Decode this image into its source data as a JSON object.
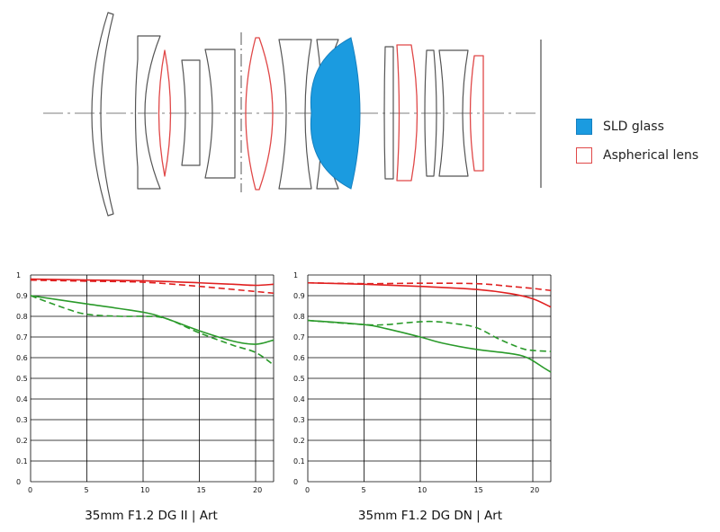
{
  "legend": {
    "items": [
      {
        "label": "SLD glass",
        "color": "#1b9be0",
        "kind": "filled"
      },
      {
        "label": "Aspherical lens",
        "color": "#e04848",
        "kind": "outline"
      }
    ]
  },
  "colors": {
    "sld": "#1b9be0",
    "aspherical": "#e04848",
    "lens": "#555555",
    "axis": "#888888",
    "sagittal_red": "#e02020",
    "green": "#2a9a2a",
    "grid": "#000000"
  },
  "chart_data": [
    {
      "type": "line",
      "title": "35mm F1.2 DG II | Art",
      "xlabel": "",
      "ylabel": "",
      "xlim": [
        0,
        21.6
      ],
      "ylim": [
        0,
        1
      ],
      "x_ticks": [
        "0",
        "5",
        "10",
        "15",
        "20"
      ],
      "y_ticks": [
        "1",
        "0.9",
        "0.8",
        "0.7",
        "0.6",
        "0.5",
        "0.4",
        "0.3",
        "0.2",
        "0.1",
        "0"
      ],
      "grid": true,
      "series": [
        {
          "color": "#e02020",
          "dash": false,
          "x": [
            0,
            5,
            10,
            15,
            18,
            20,
            21.6
          ],
          "y": [
            0.98,
            0.976,
            0.972,
            0.962,
            0.955,
            0.95,
            0.955
          ]
        },
        {
          "color": "#e02020",
          "dash": true,
          "x": [
            0,
            5,
            10,
            15,
            18,
            20,
            21.6
          ],
          "y": [
            0.975,
            0.97,
            0.965,
            0.945,
            0.93,
            0.92,
            0.912
          ]
        },
        {
          "color": "#2a9a2a",
          "dash": false,
          "x": [
            0,
            5,
            10,
            12,
            15,
            18,
            20,
            21.6
          ],
          "y": [
            0.9,
            0.86,
            0.82,
            0.79,
            0.73,
            0.68,
            0.665,
            0.685
          ]
        },
        {
          "color": "#2a9a2a",
          "dash": true,
          "x": [
            0,
            3,
            5,
            8,
            10,
            12,
            15,
            18,
            20,
            21.6
          ],
          "y": [
            0.9,
            0.84,
            0.81,
            0.8,
            0.8,
            0.79,
            0.72,
            0.66,
            0.625,
            0.565
          ]
        }
      ]
    },
    {
      "type": "line",
      "title": "35mm F1.2 DG DN | Art",
      "xlabel": "",
      "ylabel": "",
      "xlim": [
        0,
        21.6
      ],
      "ylim": [
        0,
        1
      ],
      "x_ticks": [
        "0",
        "5",
        "10",
        "15",
        "20"
      ],
      "y_ticks": [
        "1",
        "0.9",
        "0.8",
        "0.7",
        "0.6",
        "0.5",
        "0.4",
        "0.3",
        "0.2",
        "0.1",
        "0"
      ],
      "grid": true,
      "series": [
        {
          "color": "#e02020",
          "dash": false,
          "x": [
            0,
            5,
            10,
            15,
            18,
            20,
            21.6
          ],
          "y": [
            0.962,
            0.955,
            0.945,
            0.93,
            0.91,
            0.885,
            0.845
          ]
        },
        {
          "color": "#e02020",
          "dash": true,
          "x": [
            0,
            5,
            10,
            15,
            18,
            20,
            21.6
          ],
          "y": [
            0.962,
            0.958,
            0.96,
            0.958,
            0.945,
            0.935,
            0.925
          ]
        },
        {
          "color": "#2a9a2a",
          "dash": false,
          "x": [
            0,
            5,
            7,
            10,
            12,
            15,
            18,
            19.5,
            21,
            21.6
          ],
          "y": [
            0.78,
            0.76,
            0.74,
            0.7,
            0.67,
            0.64,
            0.62,
            0.6,
            0.55,
            0.53
          ]
        },
        {
          "color": "#2a9a2a",
          "dash": true,
          "x": [
            0,
            5,
            7,
            9,
            11,
            13,
            15,
            17,
            19,
            20,
            21.6
          ],
          "y": [
            0.78,
            0.76,
            0.76,
            0.77,
            0.775,
            0.765,
            0.745,
            0.69,
            0.645,
            0.635,
            0.63
          ]
        }
      ]
    }
  ]
}
